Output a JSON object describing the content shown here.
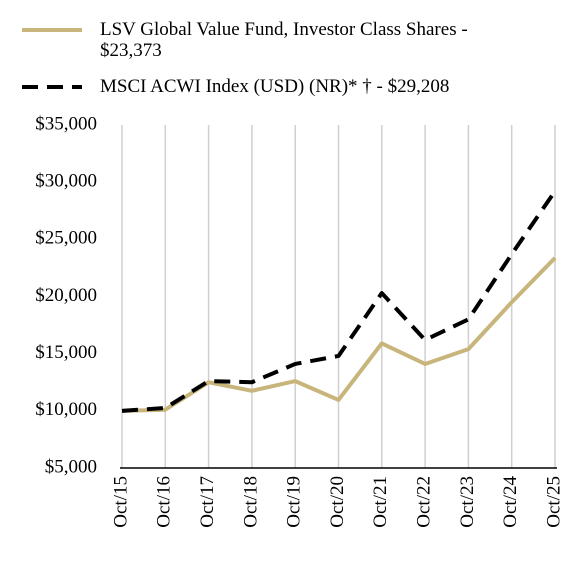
{
  "chart_data": {
    "type": "line",
    "categories": [
      "Oct/15",
      "Oct/16",
      "Oct/17",
      "Oct/18",
      "Oct/19",
      "Oct/20",
      "Oct/21",
      "Oct/22",
      "Oct/23",
      "Oct/24",
      "Oct/25"
    ],
    "series": [
      {
        "name": "LSV Global Value Fund, Investor Class Shares - $23,373",
        "color": "#c8b57c",
        "values": [
          10000,
          10100,
          12500,
          11750,
          12600,
          10950,
          15900,
          14100,
          15400,
          19500,
          23373
        ]
      },
      {
        "name": "MSCI ACWI Index (USD) (NR)* † - $29,208",
        "color": "#000000",
        "dashed": true,
        "values": [
          10000,
          10250,
          12600,
          12500,
          14100,
          14800,
          20300,
          16200,
          18000,
          23700,
          29208
        ]
      }
    ],
    "ylim": [
      5000,
      35000
    ],
    "yticks": [
      {
        "value": 5000,
        "label": "$5,000"
      },
      {
        "value": 10000,
        "label": "$10,000"
      },
      {
        "value": 15000,
        "label": "$15,000"
      },
      {
        "value": 20000,
        "label": "$20,000"
      },
      {
        "value": 25000,
        "label": "$25,000"
      },
      {
        "value": 30000,
        "label": "$30,000"
      },
      {
        "value": 35000,
        "label": "$35,000"
      }
    ],
    "grid": true
  }
}
